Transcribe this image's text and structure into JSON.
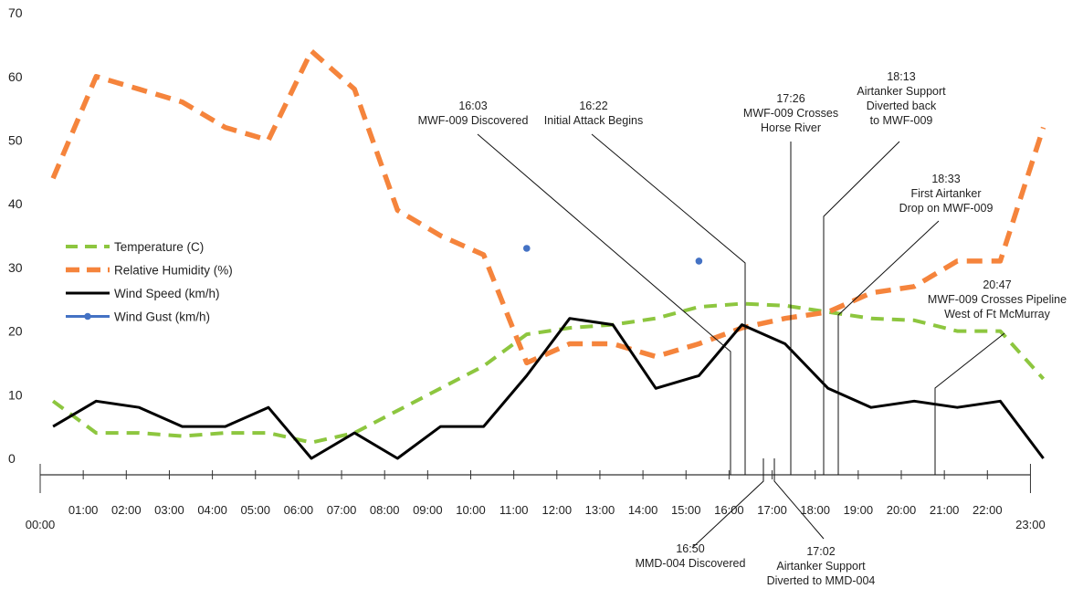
{
  "chart_data": {
    "type": "line",
    "title": "",
    "xlabel": "",
    "ylabel": "",
    "ylim": [
      0,
      70
    ],
    "yticks": [
      0,
      10,
      20,
      30,
      40,
      50,
      60,
      70
    ],
    "xticks": [
      "00:00",
      "01:00",
      "02:00",
      "03:00",
      "04:00",
      "05:00",
      "06:00",
      "07:00",
      "08:00",
      "09:00",
      "10:00",
      "11:00",
      "12:00",
      "13:00",
      "14:00",
      "15:00",
      "16:00",
      "17:00",
      "18:00",
      "19:00",
      "20:00",
      "21:00",
      "22:00",
      "23:00"
    ],
    "grid": false,
    "legend_position": "left-middle",
    "series": [
      {
        "name": "Temperature (C)",
        "color": "#8dc63f",
        "style": "dashed",
        "x": [
          0.3,
          1.3,
          2.3,
          3.3,
          4.3,
          5.3,
          6.3,
          7.3,
          8.3,
          9.3,
          10.3,
          11.3,
          12.3,
          13.3,
          14.3,
          15.3,
          16.3,
          17.3,
          18.3,
          19.3,
          20.3,
          21.3,
          22.3,
          23.3
        ],
        "values": [
          9,
          4,
          4,
          3.5,
          4,
          4,
          2.5,
          4,
          7.5,
          11,
          14.5,
          19.5,
          20.5,
          21,
          22,
          23.8,
          24.3,
          24,
          23,
          22,
          21.7,
          20,
          20,
          12.5
        ]
      },
      {
        "name": "Relative Humidity (%)",
        "color": "#f5843c",
        "style": "dashed",
        "x": [
          0.3,
          1.3,
          2.3,
          3.3,
          4.3,
          5.3,
          6.3,
          7.3,
          8.3,
          9.3,
          10.3,
          11.3,
          12.3,
          13.3,
          14.3,
          15.3,
          16.3,
          17.3,
          18.3,
          19.3,
          20.3,
          21.3,
          22.3,
          23.3
        ],
        "values": [
          44,
          60,
          58,
          56,
          52,
          50,
          64,
          58,
          39,
          35,
          32,
          15,
          18,
          18,
          16,
          18,
          20.5,
          22,
          23,
          26,
          27,
          31,
          31,
          52
        ]
      },
      {
        "name": "Wind Speed (km/h)",
        "color": "#000000",
        "style": "solid",
        "x": [
          0.3,
          1.3,
          2.3,
          3.3,
          4.3,
          5.3,
          6.3,
          7.3,
          8.3,
          9.3,
          10.3,
          11.3,
          12.3,
          13.3,
          14.3,
          15.3,
          16.3,
          17.3,
          18.3,
          19.3,
          20.3,
          21.3,
          22.3,
          23.3
        ],
        "values": [
          5,
          9,
          8,
          5,
          5,
          8,
          0,
          4,
          0,
          5,
          5,
          13,
          22,
          21,
          11,
          13,
          21,
          18,
          11,
          8,
          9,
          8,
          9,
          0
        ]
      },
      {
        "name": "Wind Gust (km/h)",
        "color": "#4472c4",
        "style": "markers",
        "x": [
          11.3,
          15.3
        ],
        "values": [
          33,
          31
        ]
      }
    ],
    "annotations": [
      {
        "time": "16:03",
        "label": "16:03",
        "text": [
          "MWF-009 Discovered"
        ],
        "position": "top"
      },
      {
        "time": "16:22",
        "label": "16:22",
        "text": [
          "Initial Attack Begins"
        ],
        "position": "top"
      },
      {
        "time": "17:26",
        "label": "17:26",
        "text": [
          "MWF-009 Crosses",
          "Horse River"
        ],
        "position": "top"
      },
      {
        "time": "18:13",
        "label": "18:13",
        "text": [
          "Airtanker Support",
          "Diverted back",
          "to MWF-009"
        ],
        "position": "top"
      },
      {
        "time": "18:33",
        "label": "18:33",
        "text": [
          "First Airtanker",
          "Drop on MWF-009"
        ],
        "position": "top"
      },
      {
        "time": "20:47",
        "label": "20:47",
        "text": [
          "MWF-009 Crosses Pipeline",
          "West of Ft McMurray"
        ],
        "position": "top"
      },
      {
        "time": "16:50",
        "label": "16:50",
        "text": [
          "MMD-004 Discovered"
        ],
        "position": "bottom"
      },
      {
        "time": "17:02",
        "label": "17:02",
        "text": [
          "Airtanker Support",
          "Diverted to MMD-004"
        ],
        "position": "bottom"
      }
    ]
  }
}
